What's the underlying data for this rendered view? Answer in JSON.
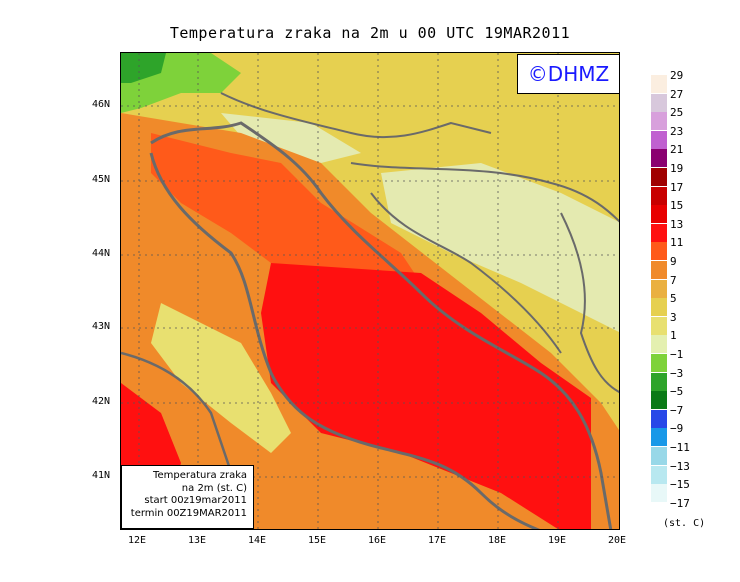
{
  "title": "Temperatura zraka na 2m u 00 UTC 19MAR2011",
  "logo_text": "©DHMZ",
  "infobox": {
    "line1": "Temperatura zraka",
    "line2": "na 2m (st. C)",
    "line3": "start 00z19mar2011",
    "line4": "termin 00Z19MAR2011"
  },
  "axes": {
    "lon_labels": [
      "12E",
      "13E",
      "14E",
      "15E",
      "16E",
      "17E",
      "18E",
      "19E",
      "20E"
    ],
    "lat_labels": [
      "46N",
      "45N",
      "44N",
      "43N",
      "42N",
      "41N"
    ]
  },
  "legend": {
    "unit": "(st. C)",
    "labels": [
      "29",
      "27",
      "25",
      "23",
      "21",
      "19",
      "17",
      "15",
      "13",
      "11",
      "9",
      "7",
      "5",
      "3",
      "1",
      "−1",
      "−3",
      "−5",
      "−7",
      "−9",
      "−11",
      "−13",
      "−15",
      "−17"
    ],
    "colors": [
      "#fbeee0",
      "#d8c8dc",
      "#d8a0dc",
      "#c060d0",
      "#8a0070",
      "#a00000",
      "#c80000",
      "#e80000",
      "#ff1010",
      "#ff5a1a",
      "#f08a2a",
      "#eab040",
      "#e6d050",
      "#e8e070",
      "#e4f0b0",
      "#7ed23a",
      "#2ea42a",
      "#0a7a16",
      "#2848e8",
      "#1898e8",
      "#98d8e8",
      "#b8e8f0",
      "#e8f8f8",
      "#ffffff"
    ]
  },
  "map_colors": {
    "sea_red": "#ff1010",
    "sea_orange": "#ff5a1a",
    "coast_orange": "#f08a2a",
    "land_yellow": "#e6d050",
    "land_lightyellow": "#e4eab0",
    "land_green": "#2ea42a",
    "border_grey": "#6a6a6a"
  }
}
